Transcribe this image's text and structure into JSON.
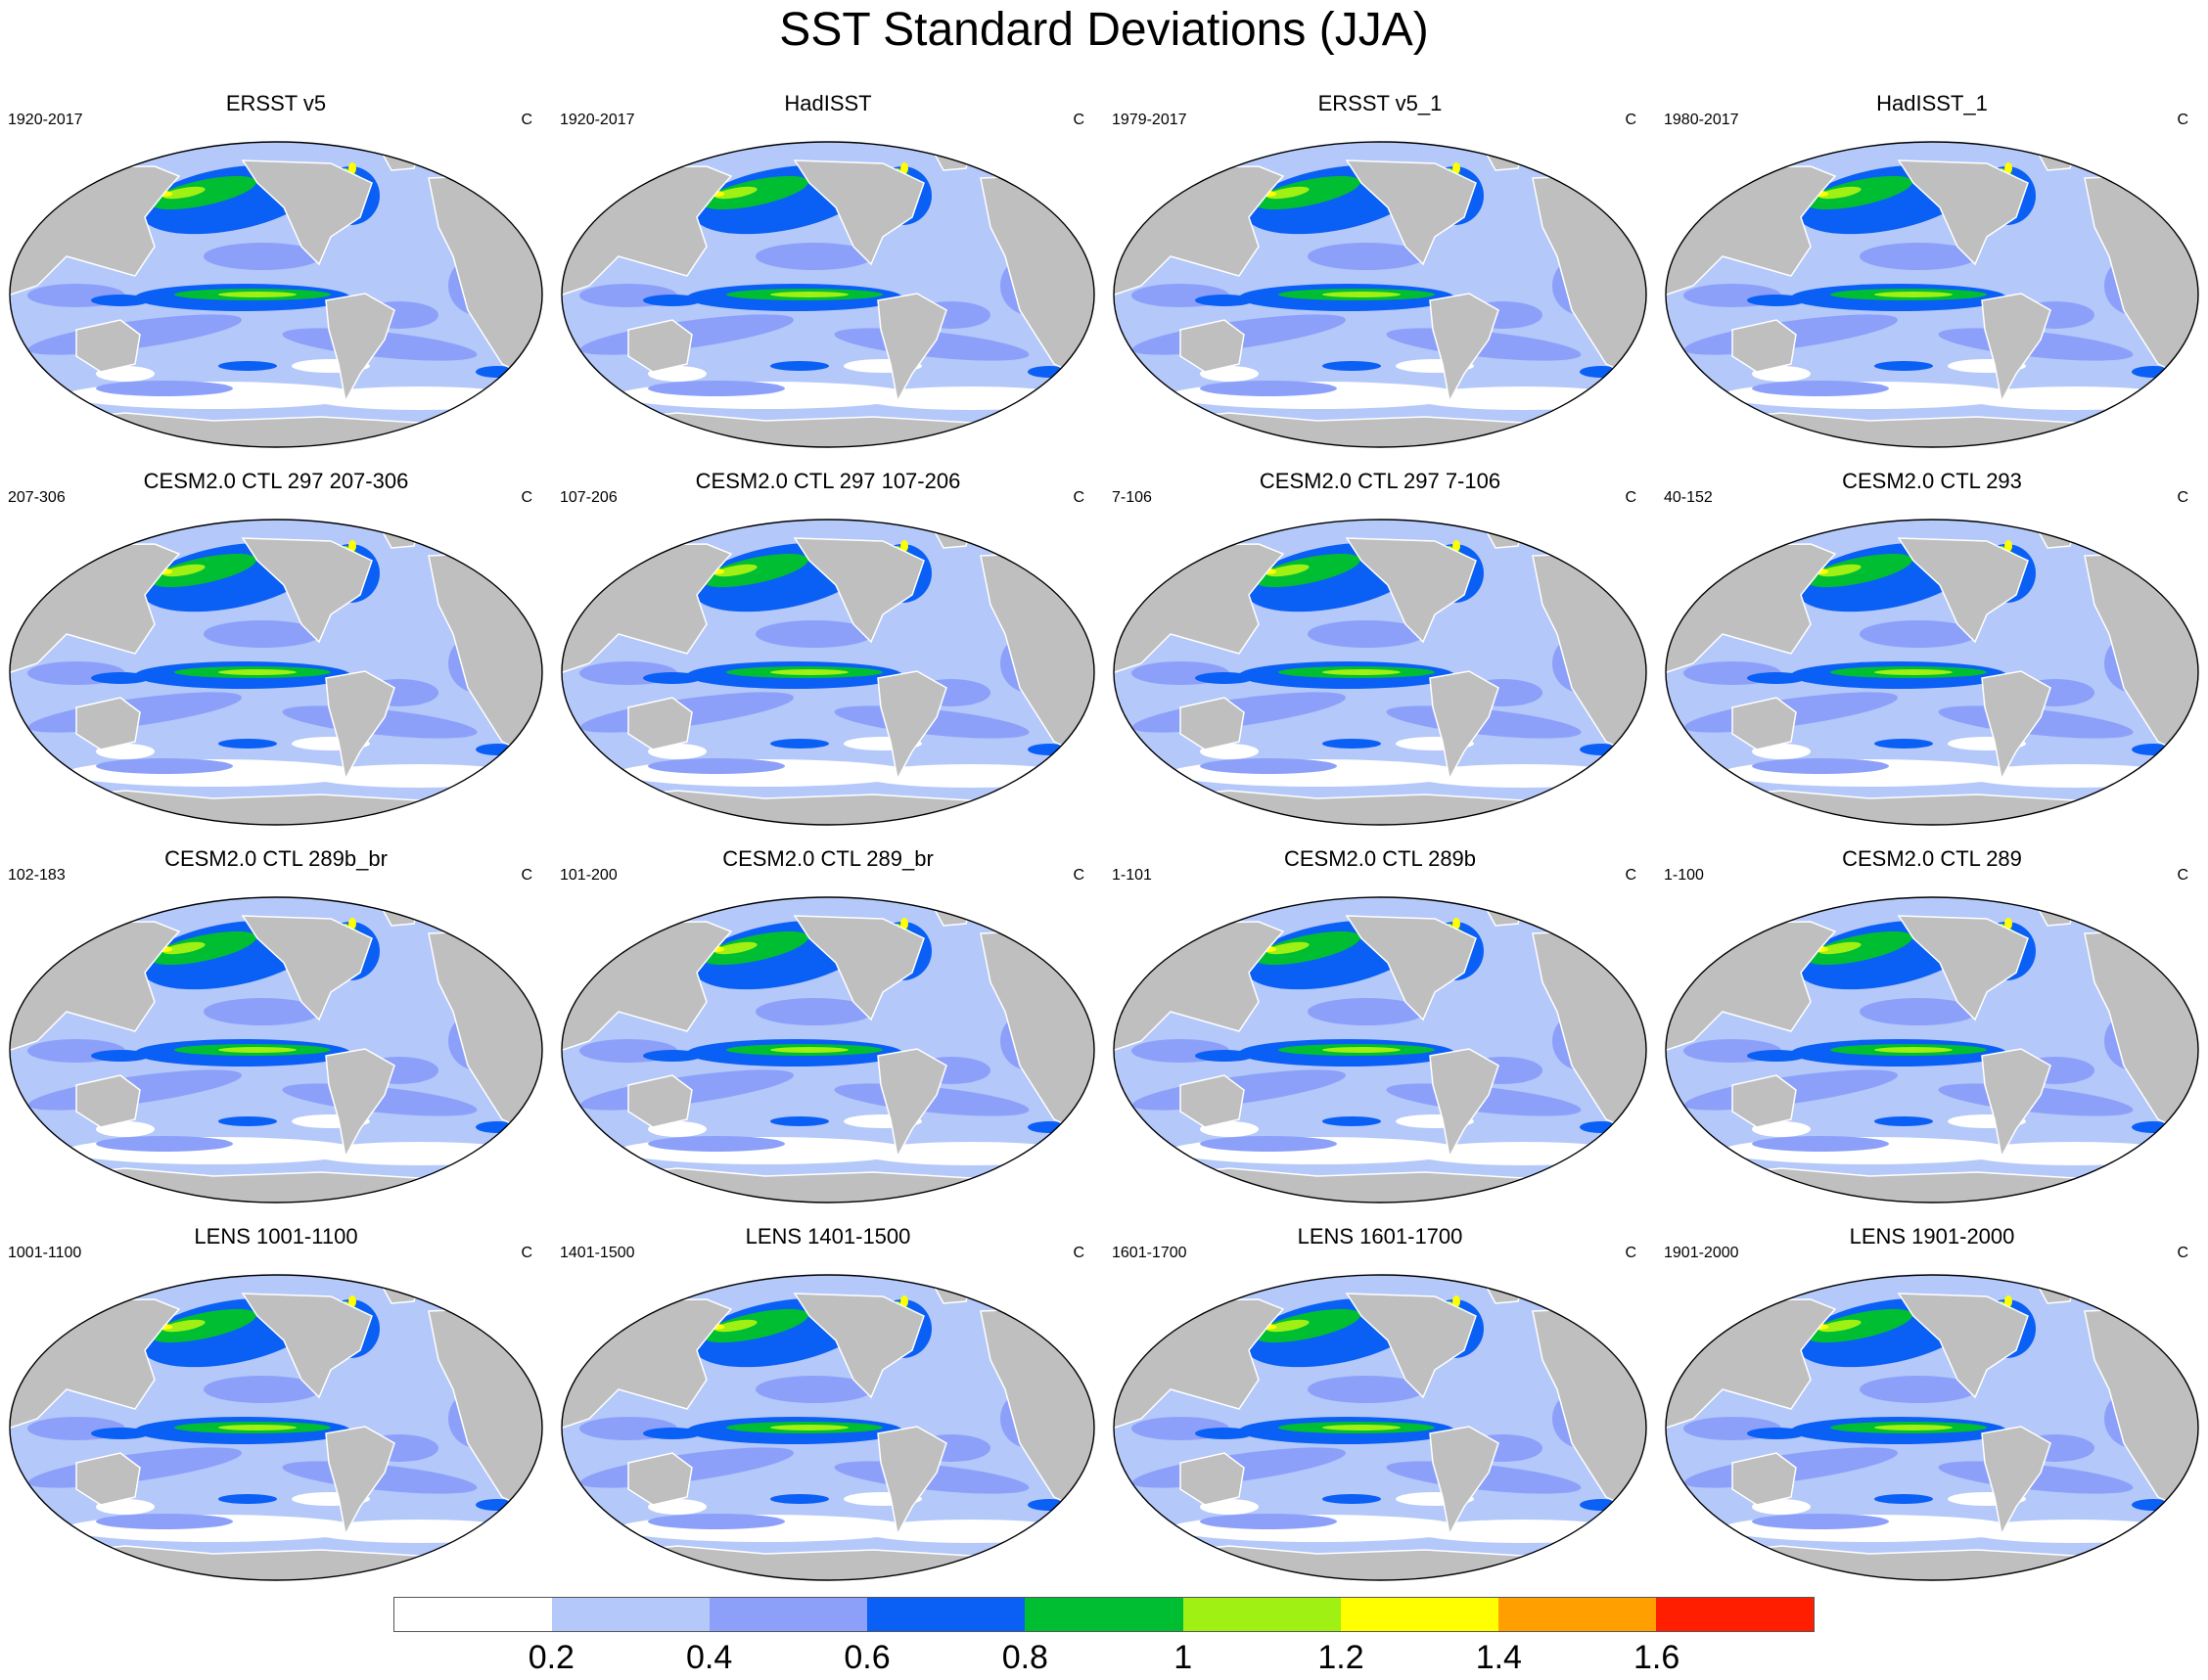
{
  "title": "SST Standard Deviations (JJA)",
  "chart_data": {
    "type": "heatmap",
    "title": "SST Standard Deviations (JJA)",
    "units": "C",
    "levels": [
      0.2,
      0.4,
      0.6,
      0.8,
      1,
      1.2,
      1.4,
      1.6
    ],
    "colorbar_labels": [
      "0.2",
      "0.4",
      "0.6",
      "0.8",
      "1",
      "1.2",
      "1.4",
      "1.6"
    ],
    "colors": [
      "#ffffff",
      "#b4c8fa",
      "#8ca0fa",
      "#0a5ff5",
      "#00be32",
      "#a0f014",
      "#ffff00",
      "#ffa000",
      "#ff1e00"
    ],
    "land_color": "#bfbfbf",
    "panels": [
      {
        "title": "ERSST v5",
        "years": "1920-2017",
        "units": "C"
      },
      {
        "title": "HadISST",
        "years": "1920-2017",
        "units": "C"
      },
      {
        "title": "ERSST v5_1",
        "years": "1979-2017",
        "units": "C"
      },
      {
        "title": "HadISST_1",
        "years": "1980-2017",
        "units": "C"
      },
      {
        "title": "CESM2.0 CTL 297 207-306",
        "years": "207-306",
        "units": "C"
      },
      {
        "title": "CESM2.0 CTL 297 107-206",
        "years": "107-206",
        "units": "C"
      },
      {
        "title": "CESM2.0 CTL 297 7-106",
        "years": "7-106",
        "units": "C"
      },
      {
        "title": "CESM2.0 CTL 293",
        "years": "40-152",
        "units": "C"
      },
      {
        "title": "CESM2.0 CTL 289b_br",
        "years": "102-183",
        "units": "C"
      },
      {
        "title": "CESM2.0 CTL 289_br",
        "years": "101-200",
        "units": "C"
      },
      {
        "title": "CESM2.0 CTL 289b",
        "years": "1-101",
        "units": "C"
      },
      {
        "title": "CESM2.0 CTL 289",
        "years": "1-100",
        "units": "C"
      },
      {
        "title": "LENS 1001-1100",
        "years": "1001-1100",
        "units": "C"
      },
      {
        "title": "LENS 1401-1500",
        "years": "1401-1500",
        "units": "C"
      },
      {
        "title": "LENS 1601-1700",
        "years": "1601-1700",
        "units": "C"
      },
      {
        "title": "LENS 1901-2000",
        "years": "1901-2000",
        "units": "C"
      }
    ]
  }
}
